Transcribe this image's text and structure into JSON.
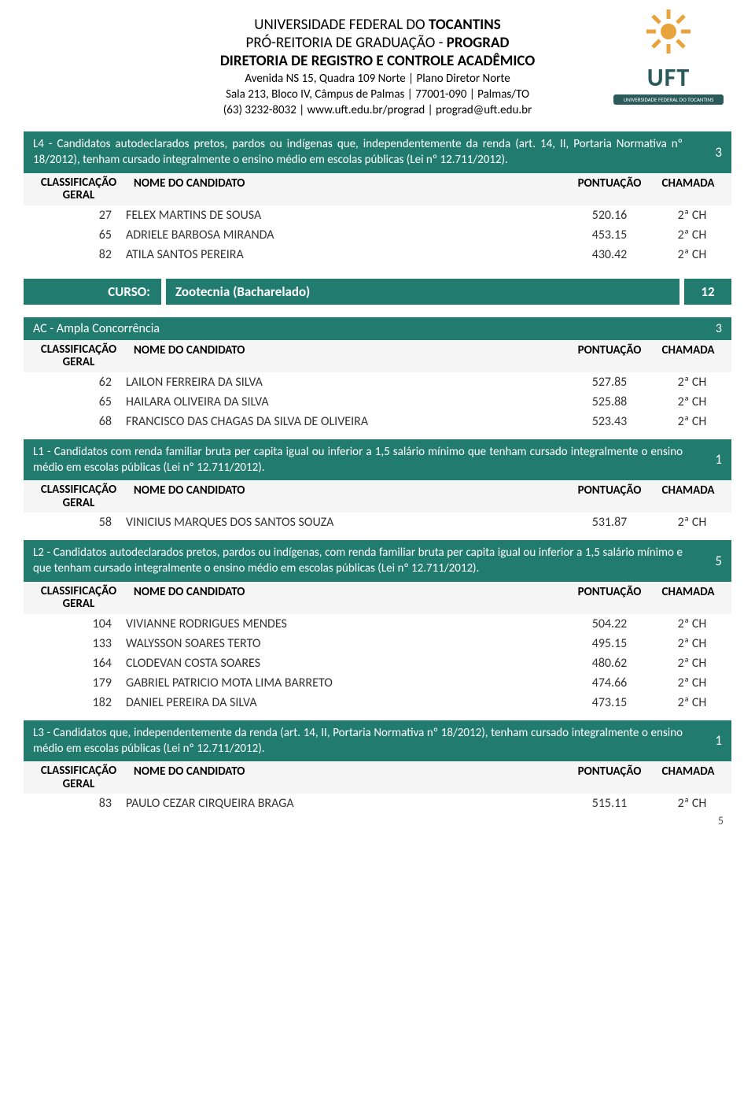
{
  "header": {
    "line1_a": "UNIVERSIDADE FEDERAL DO ",
    "line1_b": "TOCANTINS",
    "line2_a": "PRÓ-REITORIA DE GRADUAÇÃO - ",
    "line2_b": "PROGRAD",
    "line3": "DIRETORIA DE REGISTRO E CONTROLE ACADÊMICO",
    "addr1": "Avenida NS 15, Quadra 109 Norte | Plano Diretor Norte",
    "addr2": "Sala 213, Bloco IV, Câmpus de Palmas | 77001-090 | Palmas/TO",
    "addr3": "(63) 3232-8032 | www.uft.edu.br/prograd | prograd@uft.edu.br",
    "logo_text": "UFT",
    "logo_caption": "UNIVERSIDADE FEDERAL DO TOCANTINS"
  },
  "col_labels": {
    "c1a": "CLASSIFICAÇÃO",
    "c1b": "GERAL",
    "c2": "NOME DO CANDIDATO",
    "c3": "PONTUAÇÃO",
    "c4": "CHAMADA"
  },
  "sections": [
    {
      "type": "category",
      "text": "L4 - Candidatos autodeclarados pretos, pardos ou indígenas que, independentemente da renda (art. 14, II, Portaria Normativa nº 18/2012), tenham cursado integralmente o ensino médio em escolas públicas (Lei nº 12.711/2012).",
      "count": "3",
      "rows": [
        {
          "rank": "27",
          "name": "FELEX MARTINS DE SOUSA",
          "score": "520.16",
          "call": "2ª CH"
        },
        {
          "rank": "65",
          "name": "ADRIELE BARBOSA MIRANDA",
          "score": "453.15",
          "call": "2ª CH"
        },
        {
          "rank": "82",
          "name": "ATILA SANTOS PEREIRA",
          "score": "430.42",
          "call": "2ª CH"
        }
      ]
    }
  ],
  "course": {
    "label": "CURSO:",
    "name": "Zootecnia (Bacharelado)",
    "count": "12"
  },
  "sections2": [
    {
      "type": "ac",
      "text": "AC - Ampla Concorrência",
      "count": "3",
      "rows": [
        {
          "rank": "62",
          "name": "LAILON FERREIRA DA SILVA",
          "score": "527.85",
          "call": "2ª CH"
        },
        {
          "rank": "65",
          "name": "HAILARA OLIVEIRA DA SILVA",
          "score": "525.88",
          "call": "2ª CH"
        },
        {
          "rank": "68",
          "name": "FRANCISCO DAS CHAGAS DA SILVA DE OLIVEIRA",
          "score": "523.43",
          "call": "2ª CH"
        }
      ]
    },
    {
      "type": "category",
      "text": "L1 - Candidatos com renda familiar bruta per capita igual ou inferior a 1,5 salário mínimo que tenham cursado integralmente o ensino médio em escolas públicas (Lei nº 12.711/2012).",
      "count": "1",
      "rows": [
        {
          "rank": "58",
          "name": "VINICIUS MARQUES DOS SANTOS SOUZA",
          "score": "531.87",
          "call": "2ª CH"
        }
      ]
    },
    {
      "type": "category",
      "text": "L2 - Candidatos autodeclarados pretos, pardos ou indígenas, com renda familiar bruta per capita igual ou inferior a 1,5 salário mínimo e que tenham cursado integralmente o ensino médio em escolas públicas (Lei nº 12.711/2012).",
      "count": "5",
      "rows": [
        {
          "rank": "104",
          "name": "VIVIANNE RODRIGUES MENDES",
          "score": "504.22",
          "call": "2ª CH"
        },
        {
          "rank": "133",
          "name": "WALYSSON SOARES TERTO",
          "score": "495.15",
          "call": "2ª CH"
        },
        {
          "rank": "164",
          "name": "CLODEVAN COSTA SOARES",
          "score": "480.62",
          "call": "2ª CH"
        },
        {
          "rank": "179",
          "name": "GABRIEL PATRICIO MOTA LIMA BARRETO",
          "score": "474.66",
          "call": "2ª CH"
        },
        {
          "rank": "182",
          "name": "DANIEL PEREIRA DA SILVA",
          "score": "473.15",
          "call": "2ª CH"
        }
      ]
    },
    {
      "type": "category",
      "text": "L3 - Candidatos que, independentemente da renda (art. 14, II, Portaria Normativa nº 18/2012), tenham cursado integralmente o ensino médio em escolas públicas (Lei nº 12.711/2012).",
      "count": "1",
      "rows": [
        {
          "rank": "83",
          "name": "PAULO CEZAR CIRQUEIRA BRAGA",
          "score": "515.11",
          "call": "2ª CH"
        }
      ]
    }
  ],
  "page_number": "5",
  "colors": {
    "teal": "#227b6f",
    "header_bg": "#f5f5f5"
  }
}
